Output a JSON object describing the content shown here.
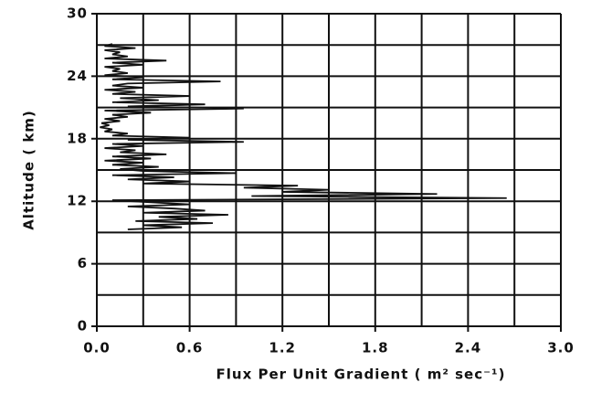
{
  "chart_data": {
    "type": "profile",
    "xlabel": "Flux Per Unit Gradient ( m² sec⁻¹)",
    "ylabel": "Altitude ( km)",
    "xlim": [
      0,
      3.0
    ],
    "ylim": [
      0,
      30
    ],
    "xticks": [
      {
        "value": 0,
        "label": "0.0"
      },
      0.6,
      1.2,
      1.8,
      2.4,
      {
        "value": 3,
        "label": "3.0"
      }
    ],
    "yticks": [
      0,
      6,
      12,
      18,
      24,
      30
    ],
    "xminor": [
      0.3,
      0.9,
      1.5,
      2.1,
      2.7
    ],
    "yminor": [
      3,
      9,
      15,
      21,
      27
    ],
    "grid": true,
    "color": "#111111",
    "series": [
      {
        "altitude": [
          9.3,
          9.5,
          9.7,
          9.9,
          10.1,
          10.3,
          10.5,
          10.7,
          10.9,
          11.1,
          11.3,
          11.5,
          11.7,
          11.9,
          12.1,
          12.3,
          12.5,
          12.7,
          12.9,
          13.1,
          13.3,
          13.5,
          13.7,
          13.9,
          14.1,
          14.3,
          14.5,
          14.7,
          14.9,
          15.1,
          15.3,
          15.5,
          15.7,
          15.9,
          16.1,
          16.3,
          16.5,
          16.7,
          16.9,
          17.1,
          17.3,
          17.5,
          17.7,
          17.9,
          18.1,
          18.3,
          18.5,
          18.7,
          18.9,
          19.1,
          19.3,
          19.5,
          19.7,
          19.9,
          20.1,
          20.3,
          20.5,
          20.7,
          20.9,
          21.1,
          21.3,
          21.5,
          21.7,
          21.9,
          22.1,
          22.3,
          22.5,
          22.7,
          22.9,
          23.1,
          23.3,
          23.5,
          23.7,
          23.9,
          24.1,
          24.3,
          24.5,
          24.7,
          24.9,
          25.1,
          25.3,
          25.5,
          25.7,
          25.9,
          26.1,
          26.3,
          26.5,
          26.7,
          26.9,
          27.1
        ],
        "values": [
          0.2,
          0.55,
          0.3,
          0.75,
          0.25,
          0.65,
          0.4,
          0.85,
          0.3,
          0.7,
          0.5,
          0.2,
          0.6,
          0.35,
          0.1,
          2.65,
          1.0,
          2.2,
          1.2,
          1.5,
          0.95,
          1.3,
          0.3,
          0.6,
          0.2,
          0.5,
          0.1,
          0.9,
          0.3,
          0.15,
          0.4,
          0.1,
          0.3,
          0.05,
          0.35,
          0.1,
          0.45,
          0.15,
          0.25,
          0.05,
          0.3,
          0.1,
          0.95,
          0.2,
          0.6,
          0.1,
          0.2,
          0.05,
          0.1,
          0.02,
          0.08,
          0.03,
          0.15,
          0.05,
          0.2,
          0.1,
          0.35,
          0.05,
          0.95,
          0.2,
          0.7,
          0.1,
          0.4,
          0.15,
          0.6,
          0.1,
          0.25,
          0.05,
          0.3,
          0.1,
          0.2,
          0.8,
          0.1,
          0.3,
          0.05,
          0.2,
          0.1,
          0.15,
          0.05,
          0.3,
          0.1,
          0.45,
          0.05,
          0.2,
          0.1,
          0.15,
          0.05,
          0.25,
          0.05,
          0.1
        ]
      }
    ]
  }
}
